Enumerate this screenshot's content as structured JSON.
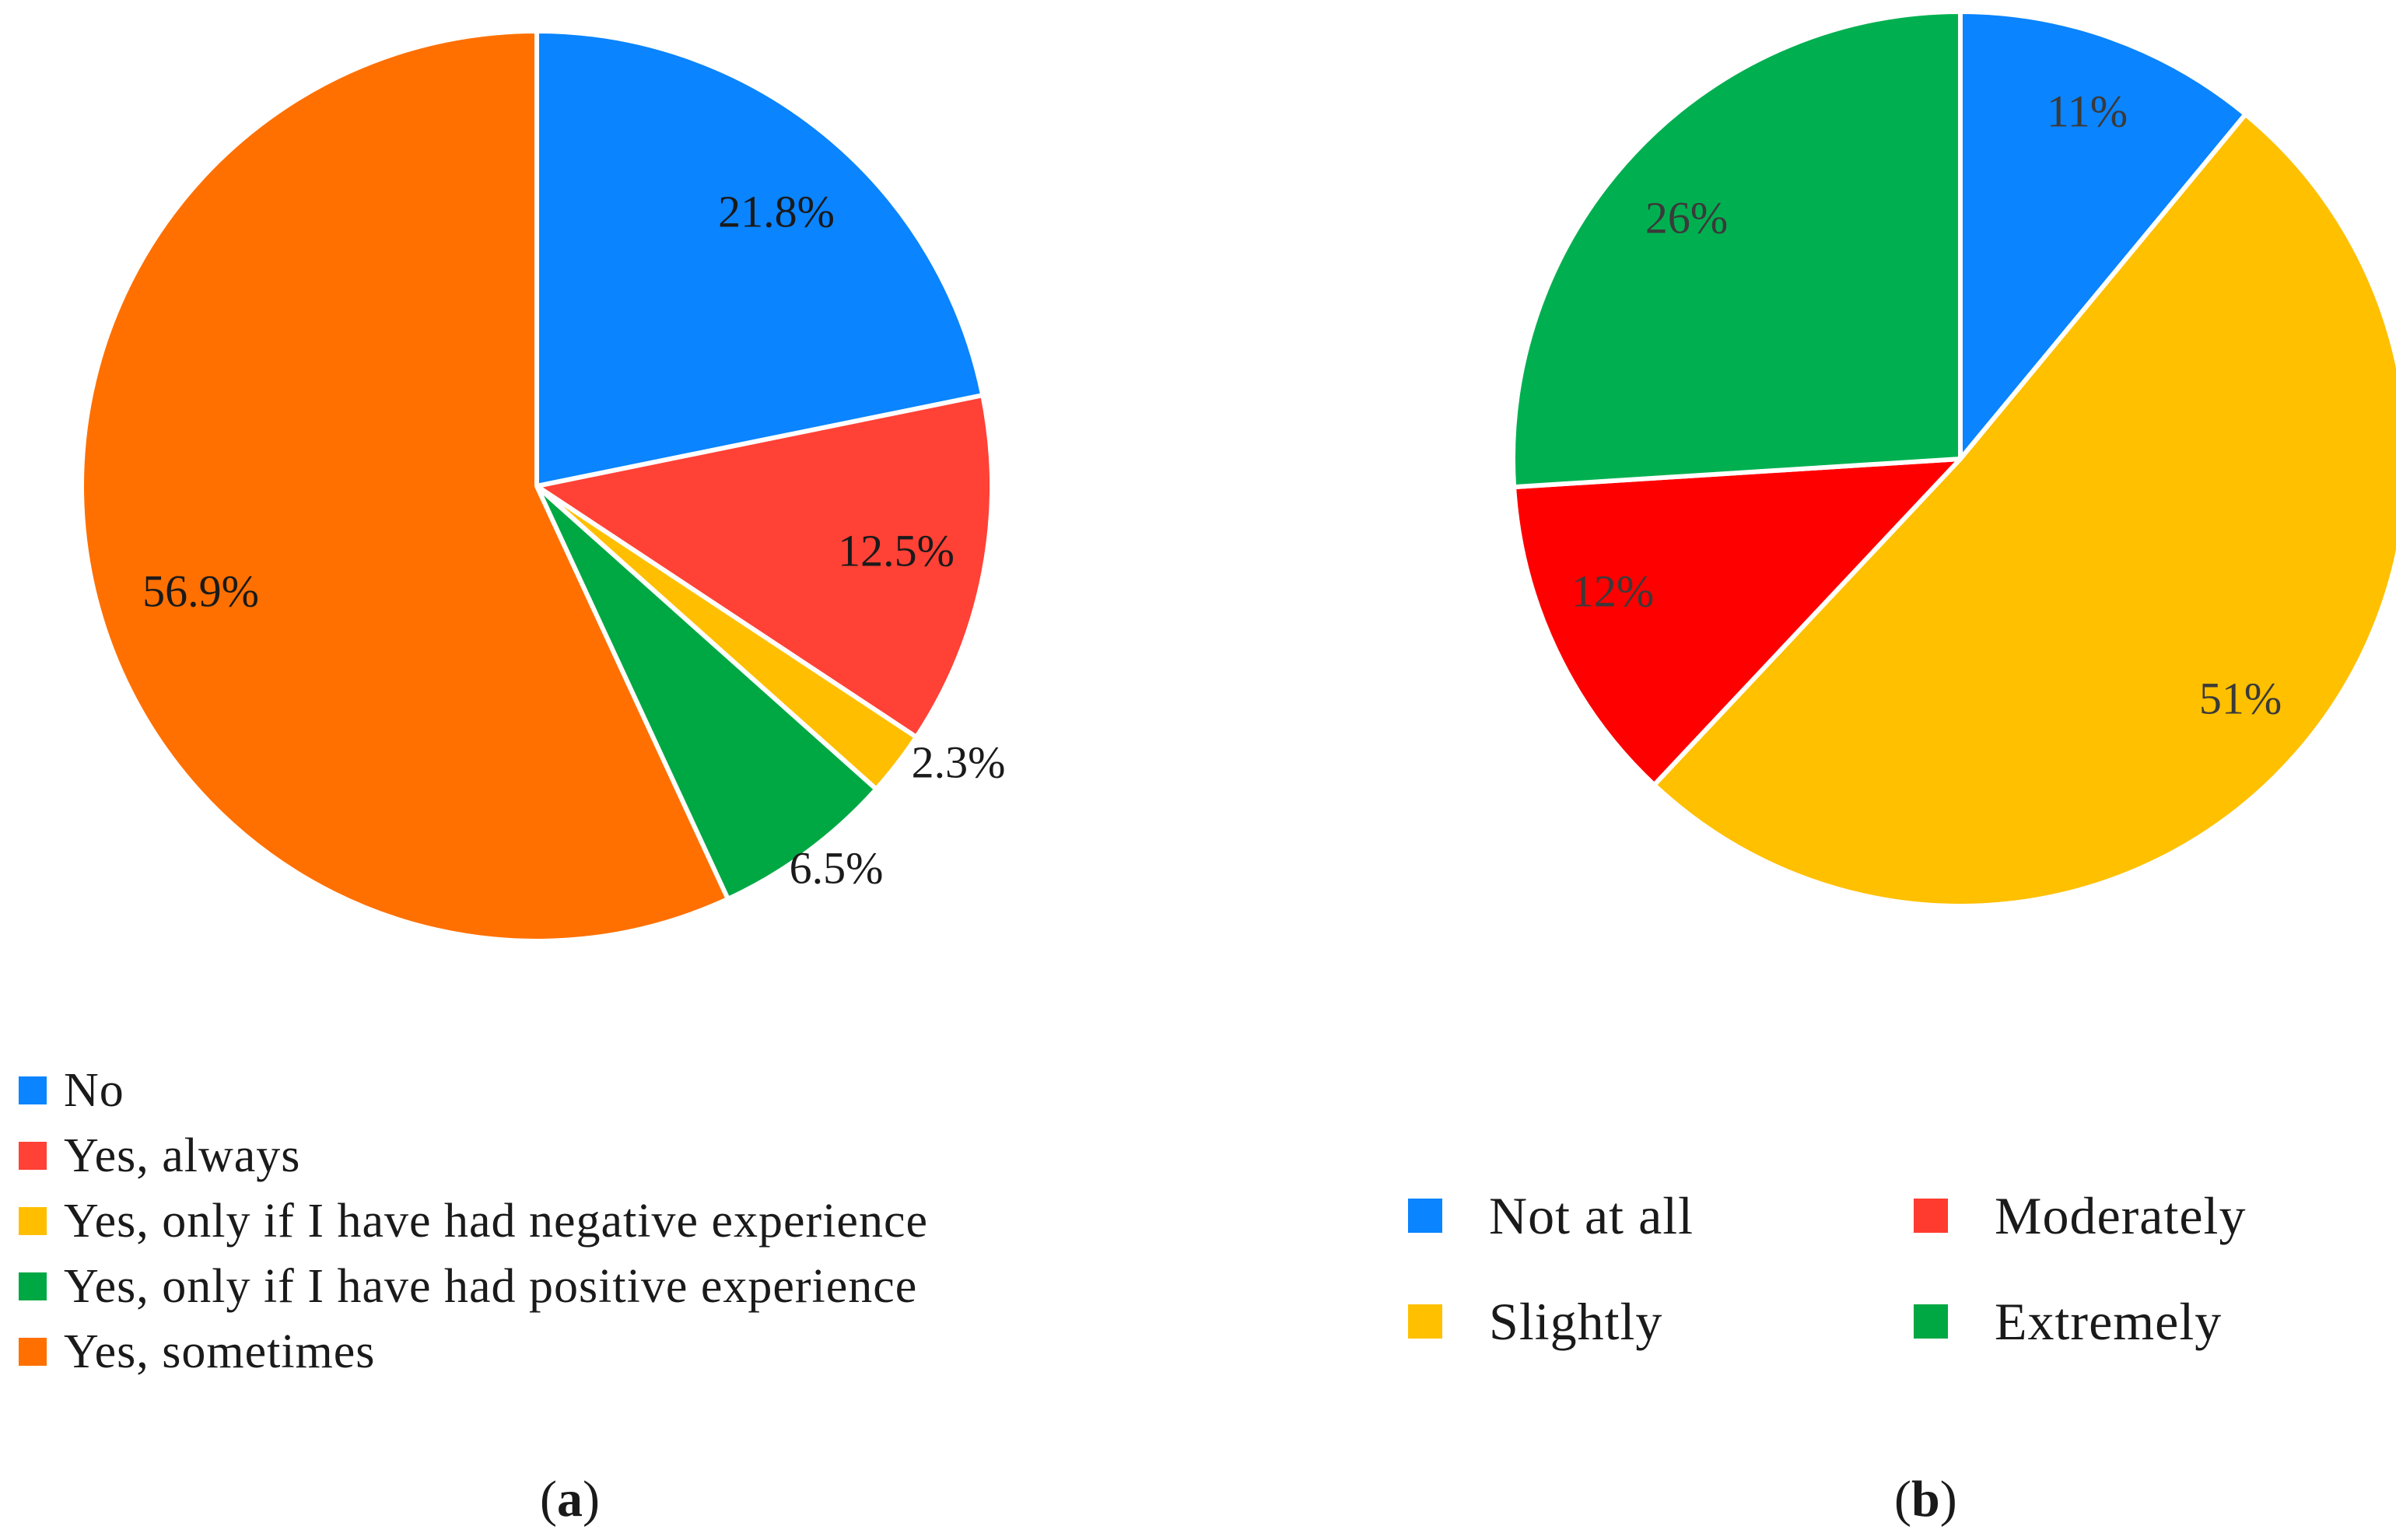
{
  "chart_data": [
    {
      "type": "pie",
      "panel_label": "a",
      "slices": [
        {
          "label": "No",
          "value": 21.8,
          "display": "21.8%",
          "color": "#0A84FF"
        },
        {
          "label": "Yes, always",
          "value": 12.5,
          "display": "12.5%",
          "color": "#FF4136"
        },
        {
          "label": "Yes, only if I have had negative experience",
          "value": 2.3,
          "display": "2.3%",
          "color": "#FFBF00"
        },
        {
          "label": "Yes, only if I have had positive experience",
          "value": 6.5,
          "display": "6.5%",
          "color": "#00A843"
        },
        {
          "label": "Yes, sometimes",
          "value": 56.9,
          "display": "56.9%",
          "color": "#FF7000"
        }
      ],
      "legend_position": "bottom-left"
    },
    {
      "type": "pie",
      "panel_label": "b",
      "slices": [
        {
          "label": "Not at all",
          "value": 11,
          "display": "11%",
          "color": "#0A84FF"
        },
        {
          "label": "Slightly",
          "value": 51,
          "display": "51%",
          "color": "#FFC000"
        },
        {
          "label": "Moderately",
          "value": 12,
          "display": "12%",
          "color": "#FF0000"
        },
        {
          "label": "Extremely",
          "value": 26,
          "display": "26%",
          "color": "#00B050"
        }
      ],
      "legend_order": [
        "Not at all",
        "Moderately",
        "Slightly",
        "Extremely"
      ],
      "legend_position": "bottom"
    }
  ],
  "legend_colors_b": {
    "Not at all": "#0A84FF",
    "Moderately": "#FF3B30",
    "Slightly": "#FFC000",
    "Extremely": "#00A843"
  }
}
